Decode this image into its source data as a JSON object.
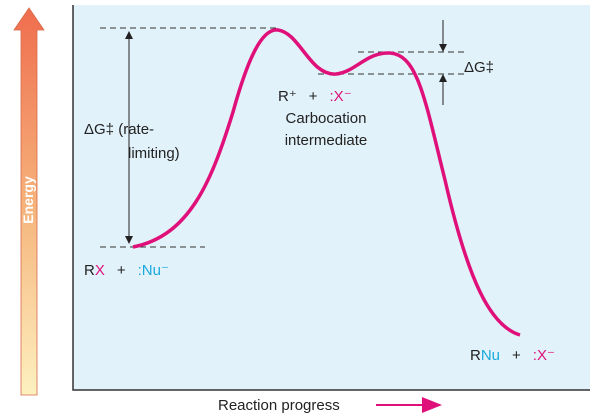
{
  "axes": {
    "y_label": "Energy",
    "x_label": "Reaction progress"
  },
  "barrier_1": {
    "label": "ΔG‡",
    "note_1": "(rate-",
    "note_2": "limiting)"
  },
  "barrier_2": {
    "label": "ΔG‡"
  },
  "intermediate": {
    "cation": "R⁺",
    "plus": "+",
    "anion": ":X⁻",
    "name_1": "Carbocation",
    "name_2": "intermediate"
  },
  "reactants": {
    "substrate_r": "R",
    "substrate_x": "X",
    "plus": "+",
    "nucleophile": ":Nu⁻"
  },
  "products": {
    "product": "RNu",
    "plus": "+",
    "anion": ":X⁻"
  }
}
